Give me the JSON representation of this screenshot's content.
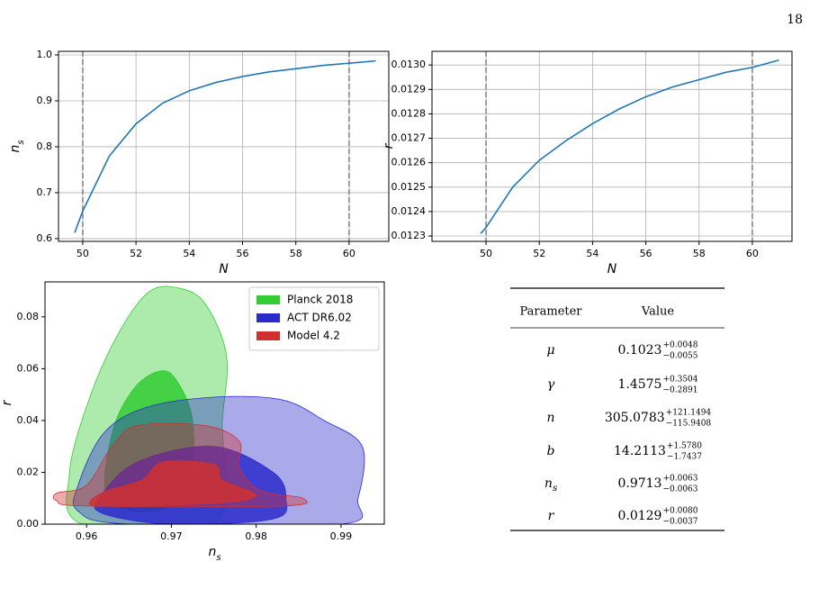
{
  "page_number": "18",
  "chart_data": [
    {
      "type": "line",
      "x": [
        49.7,
        50,
        51,
        52,
        53,
        54,
        55,
        56,
        57,
        58,
        59,
        60,
        61
      ],
      "values": [
        0.613,
        0.66,
        0.78,
        0.85,
        0.895,
        0.922,
        0.94,
        0.953,
        0.963,
        0.97,
        0.977,
        0.982,
        0.987
      ],
      "color": "#1f77b4",
      "xlim": [
        49.09,
        61.49
      ],
      "ylim": [
        0.594,
        1.0078
      ],
      "xticks": [
        50,
        52,
        54,
        56,
        58,
        60
      ],
      "yticks": [
        0.6,
        0.7,
        0.8,
        0.9,
        {
          "value": 1,
          "label": "1.0"
        }
      ],
      "vlines": [
        50,
        60
      ],
      "grid": true,
      "xlabel": {
        "text": "N"
      },
      "ylabel": {
        "text": "n",
        "sub": "s"
      }
    },
    {
      "type": "line",
      "x": [
        49.8,
        50,
        51,
        52,
        53,
        54,
        55,
        56,
        57,
        58,
        59,
        60,
        61
      ],
      "values": [
        0.01231,
        0.012335,
        0.0125,
        0.01261,
        0.01269,
        0.01276,
        0.01282,
        0.01287,
        0.01291,
        0.01294,
        0.01297,
        0.01299,
        0.01302
      ],
      "color": "#1f77b4",
      "xlim": [
        47.97,
        61.49
      ],
      "ylim": [
        0.012278,
        0.013056
      ],
      "xticks": [
        50,
        52,
        54,
        56,
        58,
        60
      ],
      "yticks": [
        0.0123,
        0.0124,
        0.0125,
        0.0126,
        0.0127,
        0.0128,
        0.0129,
        {
          "value": 0.013,
          "label": "0.0130"
        }
      ],
      "vlines": [
        50,
        60
      ],
      "grid": true,
      "xlabel": {
        "text": "N"
      },
      "ylabel": {
        "text": "r"
      }
    },
    {
      "type": "contour",
      "xlim": [
        0.9551,
        0.9951
      ],
      "ylim": [
        0,
        0.0935
      ],
      "xticks": [
        0.96,
        0.97,
        0.98,
        0.99
      ],
      "yticks": [
        {
          "value": 0,
          "label": "0.00"
        },
        {
          "value": 0.02,
          "label": "0.02"
        },
        {
          "value": 0.04,
          "label": "0.04"
        },
        {
          "value": 0.06,
          "label": "0.06"
        },
        {
          "value": 0.08,
          "label": "0.08"
        }
      ],
      "grid": false,
      "legend": "upper right",
      "xlabel": {
        "text": "n",
        "sub": "s"
      },
      "ylabel": {
        "text": "r"
      },
      "series": [
        {
          "name": "Planck 2018",
          "color": "#33cc33",
          "contours": [
            {
              "x": [
                0.9595,
                0.958,
                0.9605,
                0.964,
                0.9675,
                0.971,
                0.974,
                0.9765,
                0.976,
                0.975
              ],
              "y": [
                0,
                0.02,
                0.05,
                0.075,
                0.09,
                0.091,
                0.085,
                0.065,
                0.04,
                0
              ]
            },
            {
              "x": [
                0.9625,
                0.963,
                0.9655,
                0.9685,
                0.9705,
                0.9725,
                0.972,
                0.968
              ],
              "y": [
                0.01,
                0.035,
                0.052,
                0.059,
                0.056,
                0.04,
                0.015,
                0.005
              ]
            }
          ]
        },
        {
          "name": "ACT DR6.02",
          "color": "#2b2bcc",
          "contours": [
            {
              "x": [
                0.959,
                0.962,
                0.967,
                0.975,
                0.983,
                0.988,
                0.9925,
                0.992,
                0.99,
                0.965,
                0.959
              ],
              "y": [
                0.015,
                0.035,
                0.045,
                0.049,
                0.048,
                0.04,
                0.03,
                0.01,
                0,
                0,
                0.005
              ]
            },
            {
              "x": [
                0.9615,
                0.966,
                0.975,
                0.982,
                0.9835,
                0.982,
                0.97,
                0.962
              ],
              "y": [
                0.01,
                0.024,
                0.03,
                0.02,
                0.01,
                0.002,
                0,
                0.004
              ]
            }
          ]
        },
        {
          "name": "Model 4.2",
          "color": "#d03030",
          "contours": [
            {
              "x": [
                0.9565,
                0.96,
                0.963,
                0.966,
                0.974,
                0.978,
                0.978,
                0.9805,
                0.9855,
                0.983,
                0.96,
                0.9565
              ],
              "y": [
                0.012,
                0.015,
                0.03,
                0.038,
                0.038,
                0.032,
                0.022,
                0.013,
                0.01,
                0.007,
                0.007,
                0.009
              ]
            },
            {
              "x": [
                0.9605,
                0.9625,
                0.9665,
                0.969,
                0.975,
                0.976,
                0.98,
                0.975,
                0.962
              ],
              "y": [
                0.009,
                0.013,
                0.017,
                0.024,
                0.023,
                0.017,
                0.011,
                0.008,
                0.007
              ]
            }
          ]
        }
      ]
    }
  ],
  "table": {
    "header": [
      "Parameter",
      "Value"
    ],
    "rows": [
      {
        "symbol": "μ",
        "value": "0.1023",
        "plus": "+0.0048",
        "minus": "−0.0055"
      },
      {
        "symbol": "γ",
        "value": "1.4575",
        "plus": "+0.3504",
        "minus": "−0.2891"
      },
      {
        "symbol": "n",
        "value": "305.0783",
        "plus": "+121.1494",
        "minus": "−115.9408"
      },
      {
        "symbol": "b",
        "value": "14.2113",
        "plus": "+1.5780",
        "minus": "−1.7437"
      },
      {
        "symbol": "n",
        "sub": "s",
        "value": "0.9713",
        "plus": "+0.0063",
        "minus": "−0.0063"
      },
      {
        "symbol": "r",
        "value": "0.0129",
        "plus": "+0.0080",
        "minus": "−0.0037"
      }
    ]
  }
}
